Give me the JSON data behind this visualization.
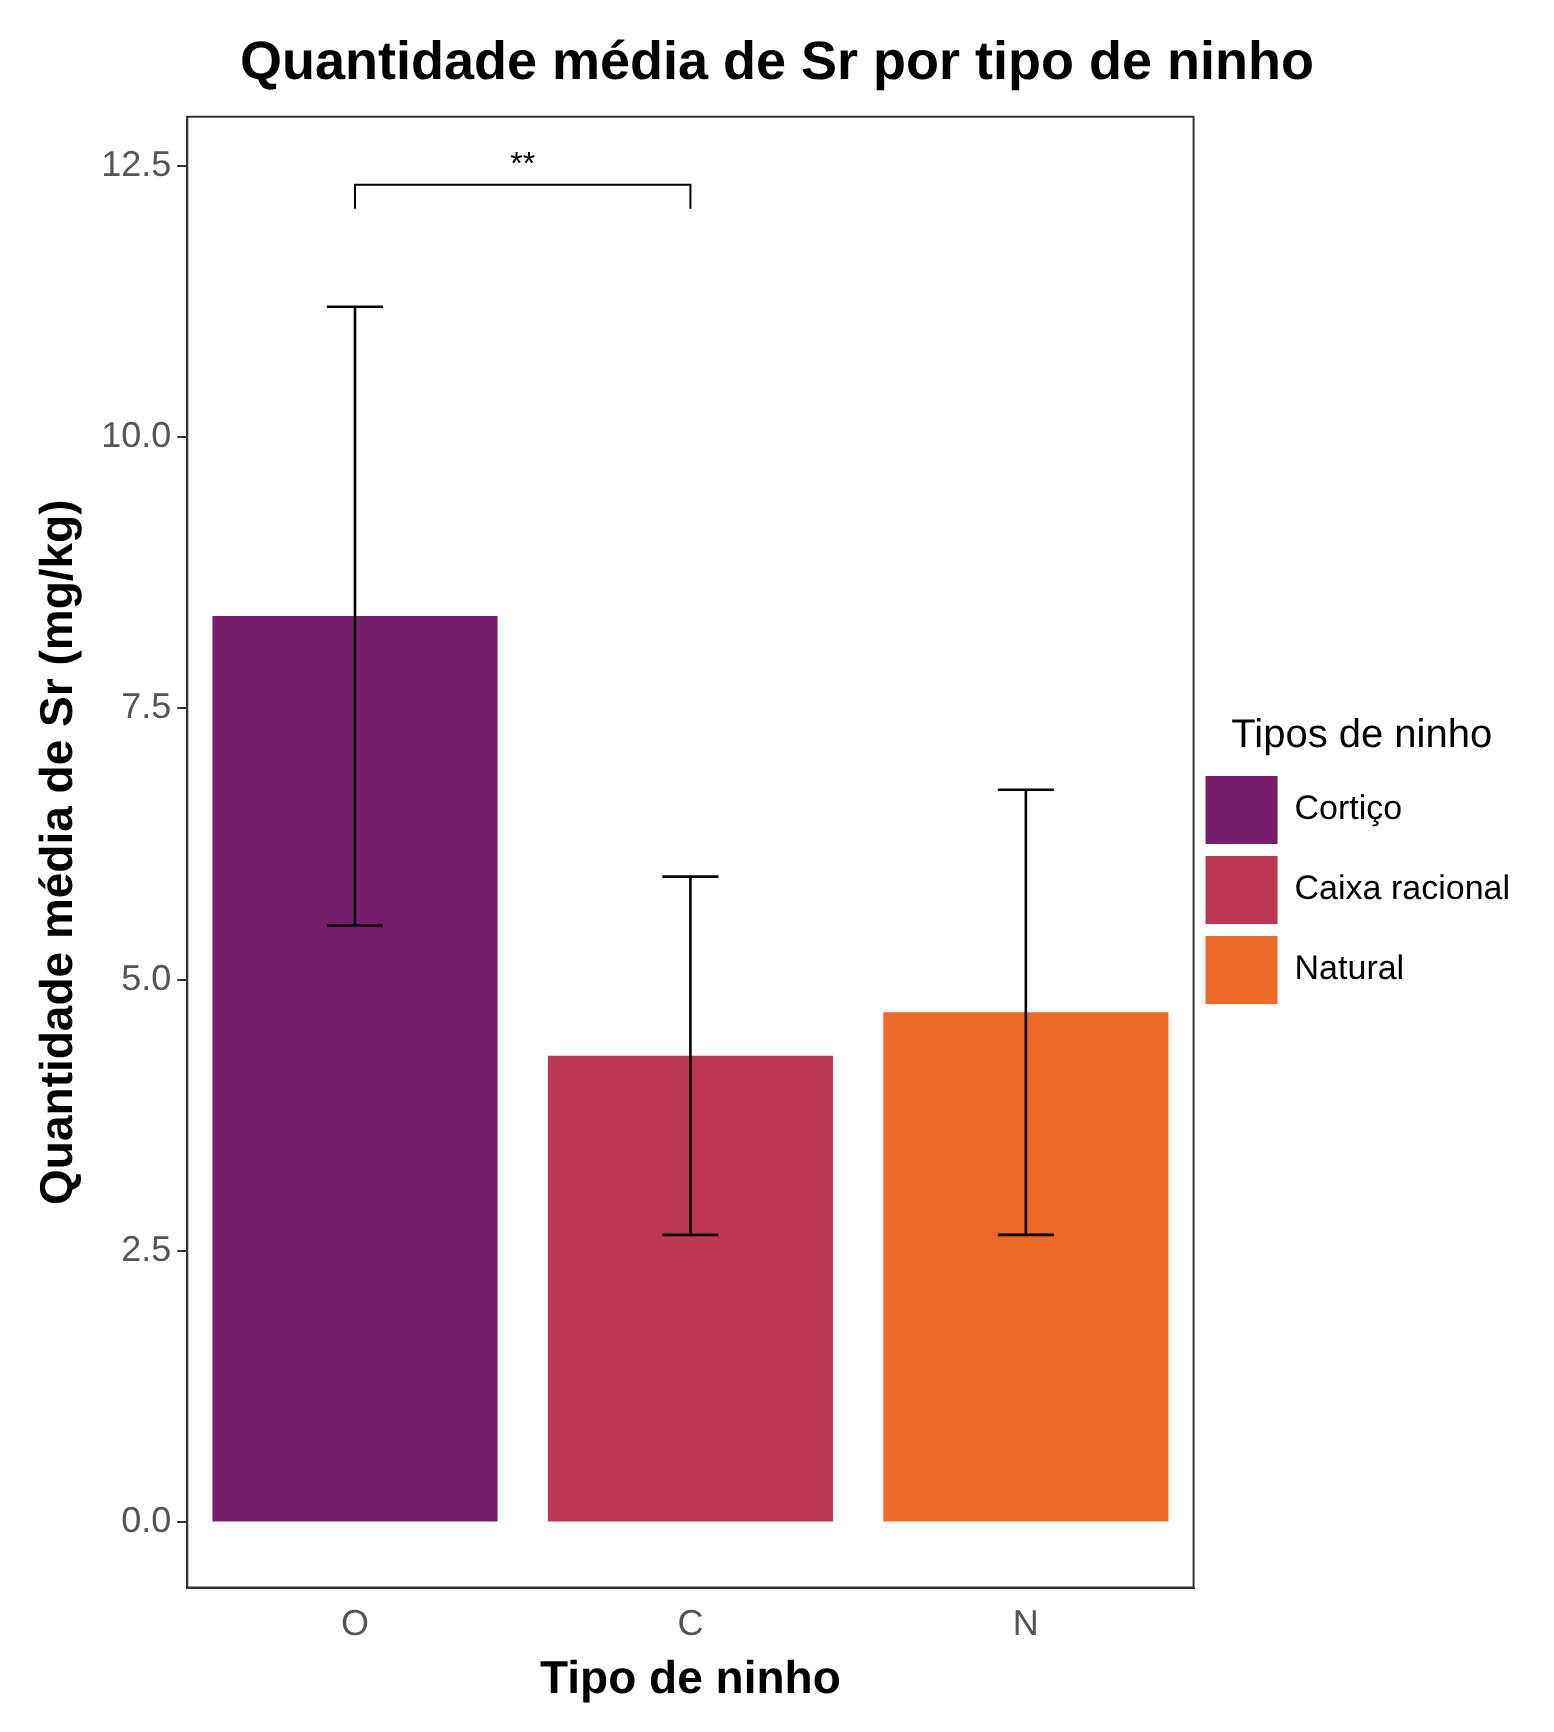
{
  "chart_data": {
    "type": "bar",
    "title": "Quantidade média de Sr por tipo de ninho",
    "xlabel": "Tipo de ninho",
    "ylabel": "Quantidade média de Sr (mg/kg)",
    "legend_title": "Tipos de ninho",
    "categories": [
      "O",
      "C",
      "N"
    ],
    "series": [
      {
        "name": "Cortiço",
        "color": "#771d6a",
        "values": [
          8.35,
          null,
          null
        ],
        "errors": [
          [
            5.5,
            11.2
          ],
          null,
          null
        ]
      },
      {
        "name": "Caixa racional",
        "color": "#bc3754",
        "values": [
          null,
          4.3,
          null
        ],
        "errors": [
          null,
          [
            2.65,
            5.95
          ],
          null
        ]
      },
      {
        "name": "Natural",
        "color": "#ed6927",
        "values": [
          null,
          null,
          4.7
        ],
        "errors": [
          null,
          null,
          [
            2.65,
            6.75
          ]
        ]
      }
    ],
    "ylim": [
      -0.6,
      12.95
    ],
    "yticks": [
      {
        "value": 0,
        "label": "0.0"
      },
      {
        "value": 2.5,
        "label": "2.5"
      },
      {
        "value": 5,
        "label": "5.0"
      },
      {
        "value": 7.5,
        "label": "7.5"
      },
      {
        "value": 10,
        "label": "10.0"
      },
      {
        "value": 12.5,
        "label": "12.5"
      }
    ],
    "grid": false,
    "legend": "right",
    "annotations": [
      "**"
    ]
  }
}
